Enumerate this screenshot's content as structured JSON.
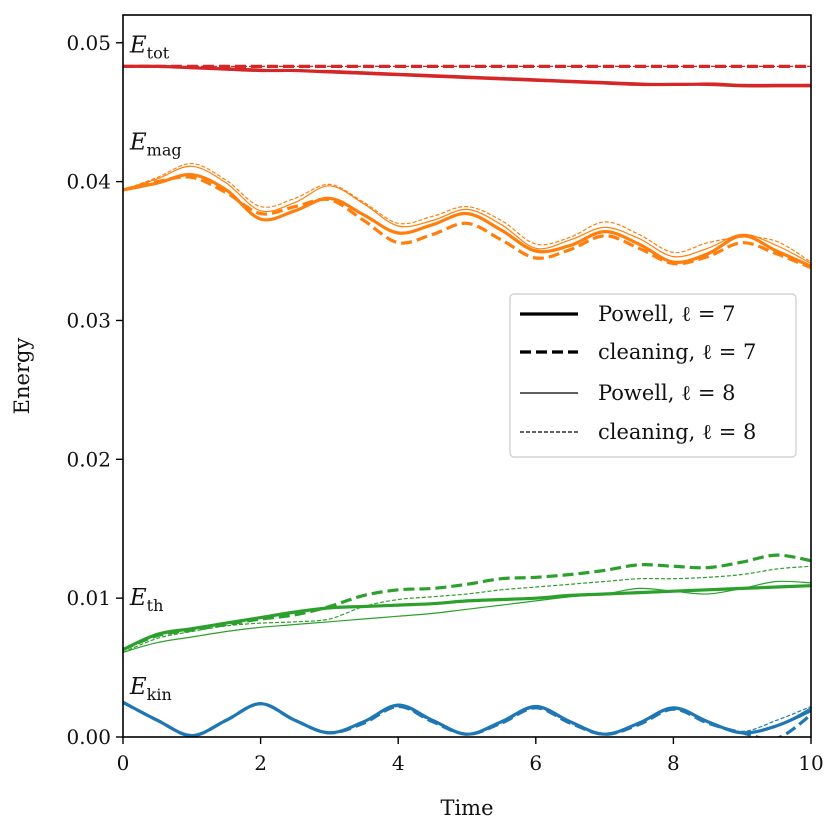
{
  "chart_data": {
    "type": "line",
    "title": "",
    "xlabel": "Time",
    "ylabel": "Energy",
    "xlim": [
      0,
      10
    ],
    "ylim": [
      0,
      0.052
    ],
    "x_ticks": [
      "0",
      "2",
      "4",
      "6",
      "8",
      "10"
    ],
    "y_ticks": [
      "0.00",
      "0.01",
      "0.02",
      "0.03",
      "0.04",
      "0.05"
    ],
    "grid": false,
    "legend_position": "center-right",
    "legend": [
      {
        "label": "Powell, ℓ = 7",
        "style": "thick-solid"
      },
      {
        "label": "cleaning, ℓ = 7",
        "style": "thick-dashed"
      },
      {
        "label": "Powell, ℓ = 8",
        "style": "thin-solid"
      },
      {
        "label": "cleaning, ℓ = 8",
        "style": "thin-dashed"
      }
    ],
    "colors": {
      "tot": "#d62728",
      "mag": "#ff7f0e",
      "th": "#2ca02c",
      "kin": "#1f77b4"
    },
    "groups": [
      {
        "key": "tot",
        "label": "E",
        "subscript": "tot",
        "label_at": [
          0.1,
          0.0493
        ]
      },
      {
        "key": "mag",
        "label": "E",
        "subscript": "mag",
        "label_at": [
          0.1,
          0.0423
        ]
      },
      {
        "key": "th",
        "label": "E",
        "subscript": "th",
        "label_at": [
          0.1,
          0.0095
        ]
      },
      {
        "key": "kin",
        "label": "E",
        "subscript": "kin",
        "label_at": [
          0.1,
          0.0031
        ]
      }
    ],
    "x": [
      0,
      0.5,
      1,
      1.5,
      2,
      2.5,
      3,
      3.5,
      4,
      4.5,
      5,
      5.5,
      6,
      6.5,
      7,
      7.5,
      8,
      8.5,
      9,
      9.5,
      10
    ],
    "series": [
      {
        "name": "E_tot Powell l=7",
        "group": "tot",
        "style": "thick-solid",
        "values": [
          0.0483,
          0.0483,
          0.0482,
          0.0481,
          0.048,
          0.048,
          0.0479,
          0.0478,
          0.0477,
          0.0476,
          0.0475,
          0.0474,
          0.0473,
          0.0472,
          0.0471,
          0.047,
          0.047,
          0.047,
          0.0469,
          0.0469,
          0.0469
        ]
      },
      {
        "name": "E_tot cleaning l=7",
        "group": "tot",
        "style": "thick-dashed",
        "values": [
          0.0483,
          0.0483,
          0.0483,
          0.0483,
          0.0483,
          0.0483,
          0.0483,
          0.0483,
          0.0483,
          0.0483,
          0.0483,
          0.0483,
          0.0483,
          0.0483,
          0.0483,
          0.0483,
          0.0483,
          0.0483,
          0.0483,
          0.0483,
          0.0483
        ]
      },
      {
        "name": "E_tot Powell l=8",
        "group": "tot",
        "style": "thin-solid",
        "values": [
          0.0483,
          0.0483,
          0.0482,
          0.0482,
          0.0481,
          0.048,
          0.048,
          0.0479,
          0.0478,
          0.0477,
          0.0476,
          0.0475,
          0.0474,
          0.0473,
          0.0472,
          0.0471,
          0.047,
          0.0471,
          0.047,
          0.047,
          0.047
        ]
      },
      {
        "name": "E_tot cleaning l=8",
        "group": "tot",
        "style": "thin-dashed",
        "values": [
          0.0483,
          0.0483,
          0.0483,
          0.0483,
          0.0483,
          0.0483,
          0.0483,
          0.0483,
          0.0483,
          0.0483,
          0.0483,
          0.0483,
          0.0483,
          0.0483,
          0.0483,
          0.0483,
          0.0483,
          0.0483,
          0.0483,
          0.0483,
          0.0483
        ]
      },
      {
        "name": "E_mag Powell l=7",
        "group": "mag",
        "style": "thick-solid",
        "values": [
          0.0394,
          0.0399,
          0.0405,
          0.0394,
          0.0373,
          0.0379,
          0.0388,
          0.0376,
          0.0363,
          0.0369,
          0.0377,
          0.0365,
          0.035,
          0.0354,
          0.0364,
          0.0355,
          0.0342,
          0.0348,
          0.0361,
          0.035,
          0.0339
        ]
      },
      {
        "name": "E_mag cleaning l=7",
        "group": "mag",
        "style": "thick-dashed",
        "values": [
          0.0394,
          0.04,
          0.0403,
          0.0392,
          0.0377,
          0.0382,
          0.0387,
          0.0372,
          0.0356,
          0.0362,
          0.037,
          0.0358,
          0.0345,
          0.0351,
          0.0361,
          0.0352,
          0.0341,
          0.0346,
          0.0356,
          0.0348,
          0.0338
        ]
      },
      {
        "name": "E_mag Powell l=8",
        "group": "mag",
        "style": "thin-solid",
        "values": [
          0.0394,
          0.0402,
          0.0411,
          0.0399,
          0.0379,
          0.0385,
          0.0397,
          0.0384,
          0.0368,
          0.0372,
          0.038,
          0.0369,
          0.0352,
          0.0358,
          0.0367,
          0.0359,
          0.0346,
          0.0352,
          0.0362,
          0.0354,
          0.0341
        ]
      },
      {
        "name": "E_mag cleaning l=8",
        "group": "mag",
        "style": "thin-dashed",
        "values": [
          0.0394,
          0.0403,
          0.0413,
          0.0401,
          0.0382,
          0.0388,
          0.0398,
          0.0385,
          0.037,
          0.0375,
          0.0382,
          0.0372,
          0.0355,
          0.036,
          0.0371,
          0.0362,
          0.0349,
          0.0356,
          0.036,
          0.0357,
          0.0342
        ]
      },
      {
        "name": "E_th Powell l=7",
        "group": "th",
        "style": "thick-solid",
        "values": [
          0.0063,
          0.0074,
          0.0078,
          0.0082,
          0.0086,
          0.009,
          0.0093,
          0.0094,
          0.0095,
          0.0096,
          0.0098,
          0.0099,
          0.01,
          0.0102,
          0.0103,
          0.0104,
          0.0105,
          0.0106,
          0.0107,
          0.0108,
          0.0109
        ]
      },
      {
        "name": "E_th cleaning l=7",
        "group": "th",
        "style": "thick-dashed",
        "values": [
          0.0063,
          0.0073,
          0.0077,
          0.0081,
          0.0085,
          0.0088,
          0.0094,
          0.0102,
          0.0106,
          0.0107,
          0.011,
          0.0114,
          0.0115,
          0.0117,
          0.012,
          0.0124,
          0.0123,
          0.0122,
          0.0126,
          0.0131,
          0.0127
        ]
      },
      {
        "name": "E_th Powell l=8",
        "group": "th",
        "style": "thin-solid",
        "values": [
          0.0061,
          0.0068,
          0.0072,
          0.0076,
          0.0079,
          0.0081,
          0.0083,
          0.0085,
          0.0087,
          0.0089,
          0.0092,
          0.0095,
          0.0098,
          0.0101,
          0.0103,
          0.0107,
          0.0105,
          0.0103,
          0.0107,
          0.0112,
          0.0111
        ]
      },
      {
        "name": "E_th cleaning l=8",
        "group": "th",
        "style": "thin-dashed",
        "values": [
          0.0061,
          0.0071,
          0.0076,
          0.008,
          0.0082,
          0.0083,
          0.0085,
          0.0094,
          0.0099,
          0.0101,
          0.0103,
          0.0106,
          0.0108,
          0.011,
          0.0112,
          0.0114,
          0.0114,
          0.0115,
          0.0117,
          0.0121,
          0.0123
        ]
      },
      {
        "name": "E_kin Powell l=7",
        "group": "kin",
        "style": "thick-solid",
        "values": [
          0.0025,
          0.0012,
          0.0001,
          0.0012,
          0.0024,
          0.0012,
          0.0003,
          0.0011,
          0.0023,
          0.0012,
          0.0002,
          0.0011,
          0.0022,
          0.0011,
          0.0002,
          0.001,
          0.0021,
          0.0011,
          0.0003,
          0.0008,
          0.0019
        ]
      },
      {
        "name": "E_kin cleaning l=7",
        "group": "kin",
        "style": "thick-dashed",
        "values": [
          0.0025,
          0.0012,
          0.0001,
          0.0012,
          0.0024,
          0.0012,
          0.0003,
          0.001,
          0.0022,
          0.0011,
          0.0002,
          0.001,
          0.0021,
          0.001,
          0.0002,
          0.0009,
          0.002,
          0.001,
          0.0003,
          -0.0001,
          0.0016
        ]
      },
      {
        "name": "E_kin Powell l=8",
        "group": "kin",
        "style": "thin-solid",
        "values": [
          0.0025,
          0.0012,
          0.0001,
          0.0012,
          0.0024,
          0.0012,
          0.0003,
          0.0011,
          0.0023,
          0.0012,
          0.0002,
          0.0011,
          0.0022,
          0.0011,
          0.0002,
          0.001,
          0.002,
          0.0011,
          0.0003,
          0.0008,
          0.0021
        ]
      },
      {
        "name": "E_kin cleaning l=8",
        "group": "kin",
        "style": "thin-dashed",
        "values": [
          0.0025,
          0.0012,
          0.0001,
          0.0012,
          0.0024,
          0.0012,
          0.0003,
          0.0011,
          0.0022,
          0.0011,
          0.0002,
          0.001,
          0.0021,
          0.001,
          0.0002,
          0.001,
          0.002,
          0.0011,
          0.0004,
          0.0012,
          0.0022
        ]
      }
    ]
  }
}
